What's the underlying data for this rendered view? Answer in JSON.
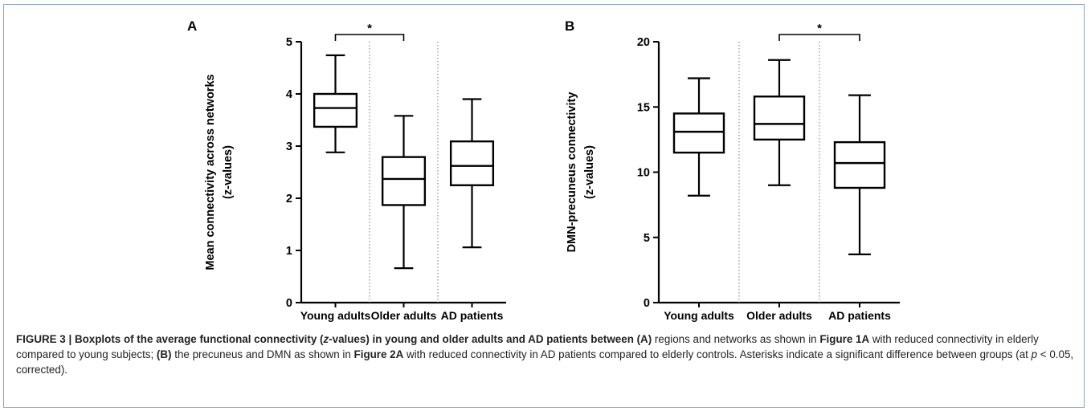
{
  "chart_data": [
    {
      "type": "boxplot",
      "panel_label": "A",
      "ylabel_line1": "Mean connectivity across networks",
      "ylabel_line2": "(z-values)",
      "ylim": [
        0,
        5
      ],
      "yticks": [
        0,
        1,
        2,
        3,
        4,
        5
      ],
      "categories": [
        "Young adults",
        "Older adults",
        "AD patients"
      ],
      "boxes": [
        {
          "min": 2.88,
          "q1": 3.37,
          "median": 3.73,
          "q3": 4.0,
          "max": 4.74
        },
        {
          "min": 0.66,
          "q1": 1.87,
          "median": 2.37,
          "q3": 2.79,
          "max": 3.58
        },
        {
          "min": 1.06,
          "q1": 2.25,
          "median": 2.62,
          "q3": 3.09,
          "max": 3.9
        }
      ],
      "significance": {
        "from": 0,
        "to": 1,
        "label": "*"
      }
    },
    {
      "type": "boxplot",
      "panel_label": "B",
      "ylabel_line1": "DMN-precuneus connectivity",
      "ylabel_line2": "(z-values)",
      "ylim": [
        0,
        20
      ],
      "yticks": [
        0,
        5,
        10,
        15,
        20
      ],
      "categories": [
        "Young adults",
        "Older adults",
        "AD patients"
      ],
      "boxes": [
        {
          "min": 8.2,
          "q1": 11.5,
          "median": 13.1,
          "q3": 14.5,
          "max": 17.2
        },
        {
          "min": 9.0,
          "q1": 12.5,
          "median": 13.7,
          "q3": 15.8,
          "max": 18.6
        },
        {
          "min": 3.7,
          "q1": 8.8,
          "median": 10.7,
          "q3": 12.3,
          "max": 15.9
        }
      ],
      "significance": {
        "from": 1,
        "to": 2,
        "label": "*"
      }
    }
  ],
  "caption": {
    "lead": "FIGURE 3 | Boxplots of the average functional connectivity (",
    "lead_z": "z",
    "lead_rest": "-values) in young and older adults and AD patients between ",
    "a_label": "(A)",
    "part1": " regions and networks as shown in ",
    "fig1a": "Figure 1A",
    "part2": " with reduced connectivity in elderly compared to young subjects; ",
    "b_label": "(B)",
    "part3": " the precuneus and DMN as shown in ",
    "fig2a": "Figure 2A",
    "part4": " with reduced connectivity in AD patients compared to elderly controls. Asterisks indicate a significant difference between groups (at ",
    "p": "p",
    "part5": " < 0.05, corrected)."
  }
}
